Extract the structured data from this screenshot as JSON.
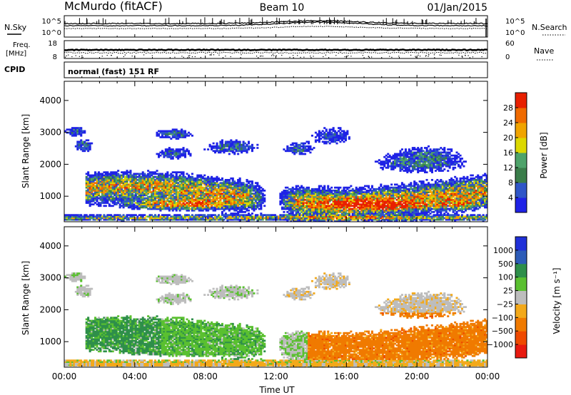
{
  "header": {
    "station": "McMurdo (fitACF)",
    "beam": "Beam 10",
    "date": "01/Jan/2015"
  },
  "colors": {
    "power_scale": [
      "#1f22e6",
      "#2f56c8",
      "#3a7d4a",
      "#4ea36a",
      "#dcd800",
      "#f0a400",
      "#ef6a00",
      "#e82000"
    ],
    "velocity_scale": [
      "#e81a10",
      "#ef4a00",
      "#f07a00",
      "#f3a91a",
      "#bdbdbd",
      "#5ac030",
      "#2e8f4a",
      "#2d5cb8",
      "#2030d8"
    ],
    "noise_traces": "#000000"
  },
  "chart_data": [
    {
      "name": "noise_panel",
      "type": "line",
      "left_label": "N.Sky",
      "right_label": "N.Search",
      "left_ticks": [
        "10^5",
        "10^0"
      ],
      "right_ticks": [
        "10^5",
        "10^0"
      ]
    },
    {
      "name": "freq_panel",
      "type": "line",
      "left_label_1": "Freq.",
      "left_label_2": "[MHz]",
      "left_ticks": [
        "18",
        "8"
      ],
      "right_ticks": [
        "60",
        "0"
      ],
      "right_label": "Nave"
    },
    {
      "name": "cpid",
      "label": "CPID",
      "value": "normal (fast) 151 RF"
    },
    {
      "name": "power",
      "type": "heatmap",
      "ylabel": "Slant Range [km]",
      "y_ticks": [
        1000,
        2000,
        3000,
        4000
      ],
      "ylim": [
        200,
        4600
      ],
      "x_ticks": [
        "00:00",
        "04:00",
        "08:00",
        "12:00",
        "16:00",
        "20:00",
        "00:00"
      ],
      "xlim_hours": [
        0,
        24
      ],
      "colorbar_label": "Power [dB]",
      "colorbar_ticks": [
        "4",
        "8",
        "12",
        "16",
        "20",
        "24",
        "28"
      ]
    },
    {
      "name": "velocity",
      "type": "heatmap",
      "ylabel": "Slant Range [km]",
      "y_ticks": [
        1000,
        2000,
        3000,
        4000
      ],
      "ylim": [
        200,
        4600
      ],
      "x_ticks": [
        "00:00",
        "04:00",
        "08:00",
        "12:00",
        "16:00",
        "20:00",
        "00:00"
      ],
      "xlim_hours": [
        0,
        24
      ],
      "xlabel": "Time UT",
      "colorbar_label": "Velocity [m s⁻¹]",
      "colorbar_ticks": [
        "1000",
        "500",
        "100",
        "25",
        "−25",
        "−100",
        "−500",
        "−1000"
      ]
    }
  ]
}
